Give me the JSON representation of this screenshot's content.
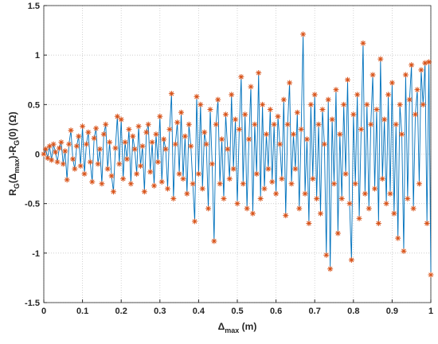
{
  "chart_data": {
    "type": "line",
    "xlabel": [
      "Δ",
      "max",
      " (m)"
    ],
    "ylabel": [
      "R",
      "G",
      "(Δ",
      "max",
      ")-R",
      "G",
      "(0) (Ω)"
    ],
    "xlim": [
      0,
      1
    ],
    "xticks": [
      0,
      0.1,
      0.2,
      0.3,
      0.4,
      0.5,
      0.6,
      0.7,
      0.8,
      0.9,
      1
    ],
    "ylim": [
      -1.5,
      1.5
    ],
    "yticks": [
      -1.5,
      -1,
      -0.5,
      0,
      0.5,
      1,
      1.5
    ],
    "grid": true,
    "x": [
      0,
      0.005,
      0.01,
      0.015,
      0.02,
      0.025,
      0.03,
      0.035,
      0.04,
      0.045,
      0.05,
      0.055,
      0.06,
      0.065,
      0.07,
      0.075,
      0.08,
      0.085,
      0.09,
      0.095,
      0.1,
      0.105,
      0.11,
      0.115,
      0.12,
      0.125,
      0.13,
      0.135,
      0.14,
      0.145,
      0.15,
      0.155,
      0.16,
      0.165,
      0.17,
      0.175,
      0.18,
      0.185,
      0.19,
      0.195,
      0.2,
      0.205,
      0.21,
      0.215,
      0.22,
      0.225,
      0.23,
      0.235,
      0.24,
      0.245,
      0.25,
      0.255,
      0.26,
      0.265,
      0.27,
      0.275,
      0.28,
      0.285,
      0.29,
      0.295,
      0.3,
      0.305,
      0.31,
      0.315,
      0.32,
      0.325,
      0.33,
      0.335,
      0.34,
      0.345,
      0.35,
      0.355,
      0.36,
      0.365,
      0.37,
      0.375,
      0.38,
      0.385,
      0.39,
      0.395,
      0.4,
      0.405,
      0.41,
      0.415,
      0.42,
      0.425,
      0.43,
      0.435,
      0.44,
      0.445,
      0.45,
      0.455,
      0.46,
      0.465,
      0.47,
      0.475,
      0.48,
      0.485,
      0.49,
      0.495,
      0.5,
      0.505,
      0.51,
      0.515,
      0.52,
      0.525,
      0.53,
      0.535,
      0.54,
      0.545,
      0.55,
      0.555,
      0.56,
      0.565,
      0.57,
      0.575,
      0.58,
      0.585,
      0.59,
      0.595,
      0.6,
      0.605,
      0.61,
      0.615,
      0.62,
      0.625,
      0.63,
      0.635,
      0.64,
      0.645,
      0.65,
      0.655,
      0.66,
      0.665,
      0.67,
      0.675,
      0.68,
      0.685,
      0.69,
      0.695,
      0.7,
      0.705,
      0.71,
      0.715,
      0.72,
      0.725,
      0.73,
      0.735,
      0.74,
      0.745,
      0.75,
      0.755,
      0.76,
      0.765,
      0.77,
      0.775,
      0.78,
      0.785,
      0.79,
      0.795,
      0.8,
      0.805,
      0.81,
      0.815,
      0.82,
      0.825,
      0.83,
      0.835,
      0.84,
      0.845,
      0.85,
      0.855,
      0.86,
      0.865,
      0.87,
      0.875,
      0.88,
      0.885,
      0.89,
      0.895,
      0.9,
      0.905,
      0.91,
      0.915,
      0.92,
      0.925,
      0.93,
      0.935,
      0.94,
      0.945,
      0.95,
      0.955,
      0.96,
      0.965,
      0.97,
      0.975,
      0.98,
      0.985,
      0.99,
      0.995,
      1
    ],
    "series": [
      {
        "color": "#0072bd",
        "marker_color": "#d95319",
        "values": [
          0,
          0.05,
          -0.04,
          0.08,
          -0.06,
          0.1,
          0.02,
          -0.08,
          0.06,
          0.12,
          -0.1,
          0.03,
          -0.26,
          0.1,
          0.24,
          -0.05,
          -0.15,
          0.08,
          0.18,
          -0.12,
          0.28,
          -0.2,
          0.1,
          0.22,
          -0.08,
          -0.28,
          0.16,
          0.26,
          -0.1,
          0.05,
          -0.3,
          0.2,
          0.3,
          -0.15,
          0.12,
          -0.22,
          -0.38,
          0.06,
          0.38,
          -0.1,
          0.35,
          -0.25,
          0.12,
          -0.05,
          0.25,
          -0.3,
          0.18,
          0.05,
          -0.2,
          0.28,
          -0.12,
          0.08,
          -0.38,
          0.22,
          0.3,
          -0.18,
          0.12,
          -0.32,
          0.2,
          -0.08,
          0.38,
          -0.28,
          0.15,
          0.05,
          -0.35,
          0.25,
          0.61,
          -0.45,
          0.1,
          0.32,
          -0.2,
          0.42,
          -0.25,
          0.18,
          -0.4,
          0.3,
          0.08,
          -0.3,
          -0.68,
          0.58,
          -0.2,
          0.5,
          -0.35,
          0.22,
          0.1,
          -0.55,
          0.45,
          -0.1,
          -0.88,
          0.3,
          0.55,
          -0.3,
          0.15,
          -0.45,
          0.4,
          0.05,
          -0.25,
          0.6,
          -0.15,
          0.35,
          -0.5,
          0.25,
          0.78,
          -0.3,
          0.4,
          -0.55,
          0.15,
          0.68,
          -0.6,
          0.3,
          -0.2,
          0.82,
          -0.45,
          0.5,
          -0.35,
          0.2,
          -0.15,
          0.45,
          -0.28,
          0.3,
          -0.4,
          0.38,
          0.1,
          -0.25,
          0.55,
          -0.62,
          0.3,
          0.72,
          -0.3,
          0.2,
          -0.15,
          0.42,
          -0.55,
          0.25,
          1.21,
          -0.4,
          0.15,
          -0.7,
          0.5,
          -0.25,
          0.6,
          -0.45,
          0.3,
          -0.6,
          0.45,
          0.1,
          -1.02,
          0.55,
          -1.16,
          0.35,
          -0.3,
          0.65,
          -0.8,
          0.2,
          -0.45,
          0.5,
          -0.2,
          0.75,
          -0.5,
          -1.07,
          0.4,
          -0.3,
          0.6,
          -0.65,
          0.25,
          1.12,
          -0.4,
          0.5,
          -0.55,
          0.3,
          0.8,
          -0.35,
          0.45,
          -0.7,
          0.96,
          -0.25,
          0.35,
          -0.5,
          0.6,
          -0.4,
          0.72,
          -0.6,
          0.3,
          -0.85,
          0.5,
          0.2,
          -0.98,
          0.8,
          -0.45,
          0.55,
          0.9,
          -0.55,
          0.4,
          0.65,
          -0.3,
          0.85,
          0.5,
          0.92,
          -0.7,
          0.93,
          -1.22
        ]
      }
    ]
  }
}
